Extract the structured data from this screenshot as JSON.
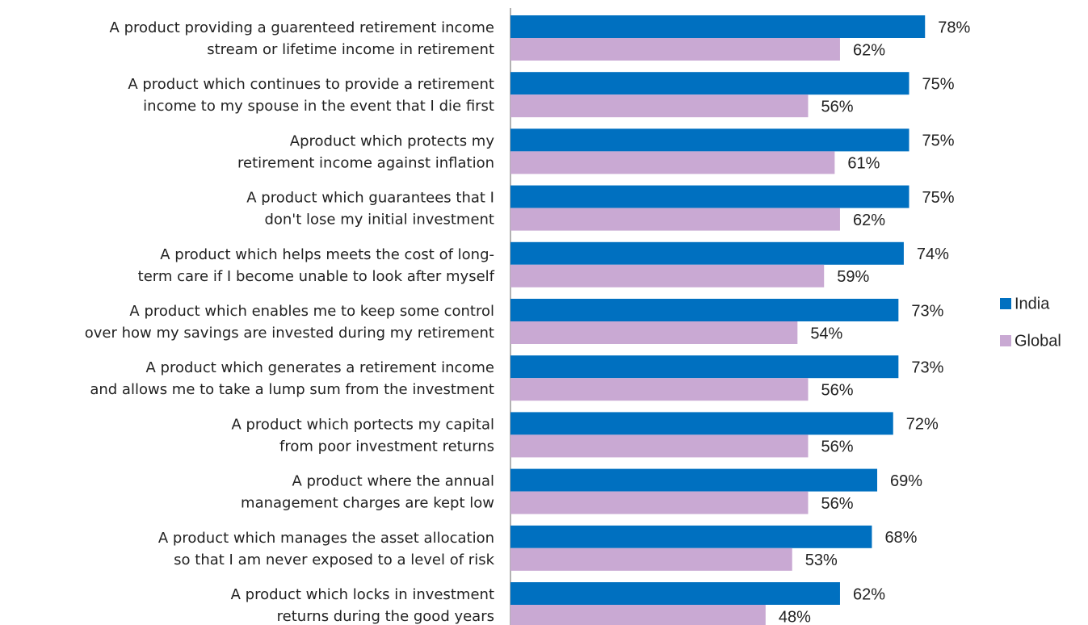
{
  "chart_data": {
    "type": "bar",
    "orientation": "horizontal",
    "categories": [
      [
        "A product providing a guarenteed retirement income",
        "stream or lifetime income in retirement"
      ],
      [
        "A product which continues to provide a retirement",
        "income to my spouse in the event that I die first"
      ],
      [
        "Aproduct which protects my",
        "retirement income against inflation"
      ],
      [
        "A product which guarantees that I",
        "don't lose my initial investment"
      ],
      [
        "A product which helps meets the cost of long-",
        "term care if I become unable to look after myself"
      ],
      [
        "A product which enables me to keep some control",
        "over how my savings are invested during my retirement"
      ],
      [
        "A product which generates a retirement income",
        "and allows me to take a lump sum from the investment"
      ],
      [
        "A product which portects my capital",
        "from poor investment returns"
      ],
      [
        "A product where the annual",
        "management charges are kept low"
      ],
      [
        "A product which manages the asset allocation",
        "so that I am never exposed to a level of risk"
      ],
      [
        "A product which locks in investment",
        "returns during the good years"
      ]
    ],
    "series": [
      {
        "name": "India",
        "color": "#0070c0",
        "values": [
          78,
          75,
          75,
          75,
          74,
          73,
          73,
          72,
          69,
          68,
          62
        ],
        "value_labels": [
          "78%",
          "75%",
          "75%",
          "75%",
          "74%",
          "73%",
          "73%",
          "72%",
          "69%",
          "68%",
          "62%"
        ]
      },
      {
        "name": "Global",
        "color": "#c9a9d3",
        "values": [
          62,
          56,
          61,
          62,
          59,
          54,
          56,
          56,
          56,
          53,
          48
        ],
        "value_labels": [
          "62%",
          "56%",
          "61%",
          "62%",
          "59%",
          "54%",
          "56%",
          "56%",
          "56%",
          "53%",
          "48%"
        ]
      }
    ],
    "legend": "right"
  }
}
